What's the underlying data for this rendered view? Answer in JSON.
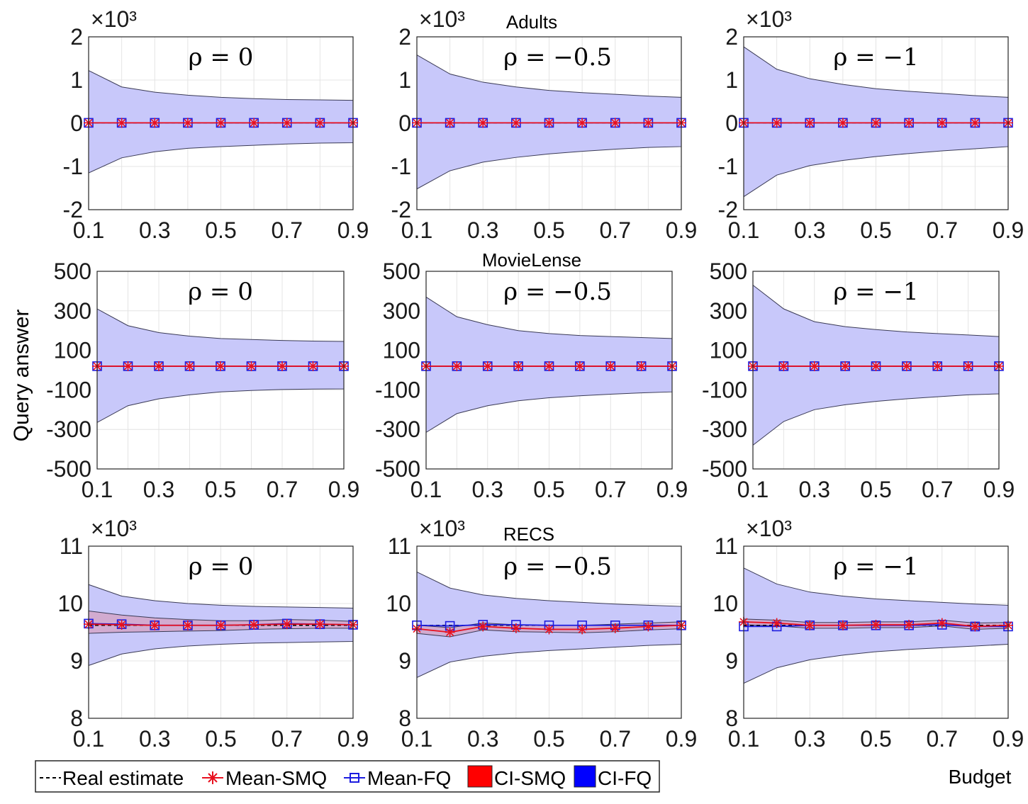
{
  "figure": {
    "y_label": "Query answer",
    "x_label": "Budget",
    "row_titles": [
      "Adults",
      "MovieLense",
      "RECS"
    ],
    "colors": {
      "fq_band": "#c8c8fa",
      "smq_band": "#d4a6c8",
      "band_edge": "#3a3a55",
      "real": "#000000",
      "smq": "#e8101e",
      "fq": "#1c1ce0",
      "grid": "#e4e4e4",
      "axis": "#262626",
      "ci_smq_patch": "#ff0000",
      "ci_fq_patch": "#0000ff"
    }
  },
  "legend": {
    "items": [
      {
        "label": "Real estimate",
        "icon": "dashed-line-icon"
      },
      {
        "label": "Mean-SMQ",
        "icon": "asterisk-marker-icon"
      },
      {
        "label": "Mean-FQ",
        "icon": "square-marker-icon"
      },
      {
        "label": "CI-SMQ",
        "icon": "red-patch-icon"
      },
      {
        "label": "CI-FQ",
        "icon": "blue-patch-icon"
      }
    ]
  },
  "chart_data": [
    {
      "type": "line",
      "row": 0,
      "col": 0,
      "dataset": "Adults",
      "title": "ρ = 0",
      "multiplier": "×10³",
      "x": [
        0.1,
        0.2,
        0.3,
        0.4,
        0.5,
        0.6,
        0.7,
        0.8,
        0.9
      ],
      "xticks": [
        "0.1",
        "0.3",
        "0.5",
        "0.7",
        "0.9"
      ],
      "ylim": [
        -2,
        2
      ],
      "yticks": [
        2,
        1,
        0,
        -1,
        -2
      ],
      "ytick_labels": [
        "2",
        "1",
        "0",
        "-1",
        "-2"
      ],
      "real": [
        0.01,
        0.01,
        0.01,
        0.01,
        0.01,
        0.01,
        0.01,
        0.01,
        0.01
      ],
      "fq_mean": [
        0.01,
        0.01,
        0.01,
        0.01,
        0.01,
        0.01,
        0.01,
        0.01,
        0.01
      ],
      "smq_mean": [
        0.01,
        0.01,
        0.01,
        0.01,
        0.01,
        0.01,
        0.01,
        0.01,
        0.01
      ],
      "fq_upper": [
        1.22,
        0.84,
        0.72,
        0.65,
        0.6,
        0.57,
        0.55,
        0.54,
        0.53
      ],
      "fq_lower": [
        -1.15,
        -0.8,
        -0.66,
        -0.58,
        -0.54,
        -0.51,
        -0.48,
        -0.46,
        -0.45
      ]
    },
    {
      "type": "line",
      "row": 0,
      "col": 1,
      "dataset": "Adults",
      "title": "ρ = −0.5",
      "multiplier": "×10³",
      "x": [
        0.1,
        0.2,
        0.3,
        0.4,
        0.5,
        0.6,
        0.7,
        0.8,
        0.9
      ],
      "xticks": [
        "0.1",
        "0.3",
        "0.5",
        "0.7",
        "0.9"
      ],
      "ylim": [
        -2,
        2
      ],
      "yticks": [
        2,
        1,
        0,
        -1,
        -2
      ],
      "ytick_labels": [
        "2",
        "1",
        "0",
        "-1",
        "-2"
      ],
      "real": [
        0.01,
        0.01,
        0.01,
        0.01,
        0.01,
        0.01,
        0.01,
        0.01,
        0.01
      ],
      "fq_mean": [
        0.01,
        0.01,
        0.01,
        0.01,
        0.01,
        0.01,
        0.01,
        0.01,
        0.01
      ],
      "smq_mean": [
        0.01,
        0.01,
        0.01,
        0.01,
        0.01,
        0.01,
        0.01,
        0.01,
        0.01
      ],
      "fq_upper": [
        1.58,
        1.14,
        0.95,
        0.84,
        0.76,
        0.71,
        0.67,
        0.63,
        0.6
      ],
      "fq_lower": [
        -1.52,
        -1.1,
        -0.9,
        -0.79,
        -0.71,
        -0.65,
        -0.6,
        -0.56,
        -0.54
      ]
    },
    {
      "type": "line",
      "row": 0,
      "col": 2,
      "dataset": "Adults",
      "title": "ρ = −1",
      "multiplier": "×10³",
      "x": [
        0.1,
        0.2,
        0.3,
        0.4,
        0.5,
        0.6,
        0.7,
        0.8,
        0.9
      ],
      "xticks": [
        "0.1",
        "0.3",
        "0.5",
        "0.7",
        "0.9"
      ],
      "ylim": [
        -2,
        2
      ],
      "yticks": [
        2,
        1,
        0,
        -1,
        -2
      ],
      "ytick_labels": [
        "2",
        "1",
        "0",
        "-1",
        "-2"
      ],
      "real": [
        0.01,
        0.01,
        0.01,
        0.01,
        0.01,
        0.01,
        0.01,
        0.01,
        0.01
      ],
      "fq_mean": [
        0.01,
        0.01,
        0.01,
        0.01,
        0.01,
        0.01,
        0.01,
        0.01,
        0.01
      ],
      "smq_mean": [
        0.01,
        0.01,
        0.01,
        0.01,
        0.01,
        0.01,
        0.01,
        0.01,
        0.01
      ],
      "fq_upper": [
        1.77,
        1.25,
        1.03,
        0.9,
        0.8,
        0.74,
        0.69,
        0.64,
        0.6
      ],
      "fq_lower": [
        -1.7,
        -1.2,
        -0.98,
        -0.86,
        -0.77,
        -0.7,
        -0.64,
        -0.59,
        -0.54
      ]
    },
    {
      "type": "line",
      "row": 1,
      "col": 0,
      "dataset": "MovieLense",
      "title": "ρ = 0",
      "multiplier": "",
      "x": [
        0.1,
        0.2,
        0.3,
        0.4,
        0.5,
        0.6,
        0.7,
        0.8,
        0.9
      ],
      "xticks": [
        "0.1",
        "0.3",
        "0.5",
        "0.7",
        "0.9"
      ],
      "ylim": [
        -500,
        500
      ],
      "yticks": [
        500,
        300,
        100,
        -100,
        -300,
        -500
      ],
      "ytick_labels": [
        "500",
        "300",
        "100",
        "-100",
        "-300",
        "-500"
      ],
      "real": [
        20,
        20,
        20,
        20,
        20,
        20,
        20,
        20,
        20
      ],
      "fq_mean": [
        20,
        20,
        20,
        20,
        20,
        20,
        20,
        20,
        20
      ],
      "smq_mean": [
        20,
        20,
        20,
        20,
        20,
        20,
        20,
        20,
        20
      ],
      "fq_upper": [
        310,
        225,
        190,
        172,
        160,
        155,
        150,
        147,
        145
      ],
      "fq_lower": [
        -265,
        -180,
        -145,
        -125,
        -110,
        -103,
        -98,
        -96,
        -95
      ]
    },
    {
      "type": "line",
      "row": 1,
      "col": 1,
      "dataset": "MovieLense",
      "title": "ρ = −0.5",
      "multiplier": "",
      "x": [
        0.1,
        0.2,
        0.3,
        0.4,
        0.5,
        0.6,
        0.7,
        0.8,
        0.9
      ],
      "xticks": [
        "0.1",
        "0.3",
        "0.5",
        "0.7",
        "0.9"
      ],
      "ylim": [
        -500,
        500
      ],
      "yticks": [
        500,
        300,
        100,
        -100,
        -300,
        -500
      ],
      "ytick_labels": [
        "500",
        "300",
        "100",
        "-100",
        "-300",
        "-500"
      ],
      "real": [
        20,
        20,
        20,
        20,
        20,
        20,
        20,
        20,
        20
      ],
      "fq_mean": [
        20,
        20,
        20,
        20,
        20,
        20,
        20,
        20,
        20
      ],
      "smq_mean": [
        20,
        20,
        20,
        20,
        20,
        20,
        20,
        20,
        20
      ],
      "fq_upper": [
        370,
        270,
        230,
        200,
        185,
        175,
        170,
        165,
        160
      ],
      "fq_lower": [
        -315,
        -220,
        -180,
        -155,
        -140,
        -130,
        -122,
        -115,
        -110
      ]
    },
    {
      "type": "line",
      "row": 1,
      "col": 2,
      "dataset": "MovieLense",
      "title": "ρ = −1",
      "multiplier": "",
      "x": [
        0.1,
        0.2,
        0.3,
        0.4,
        0.5,
        0.6,
        0.7,
        0.8,
        0.9
      ],
      "xticks": [
        "0.1",
        "0.3",
        "0.5",
        "0.7",
        "0.9"
      ],
      "ylim": [
        -500,
        500
      ],
      "yticks": [
        500,
        300,
        100,
        -100,
        -300,
        -500
      ],
      "ytick_labels": [
        "500",
        "300",
        "100",
        "-100",
        "-300",
        "-500"
      ],
      "real": [
        20,
        20,
        20,
        20,
        20,
        20,
        20,
        20,
        20
      ],
      "fq_mean": [
        20,
        20,
        20,
        20,
        20,
        20,
        20,
        20,
        20
      ],
      "smq_mean": [
        20,
        20,
        20,
        20,
        20,
        20,
        20,
        20,
        20
      ],
      "fq_upper": [
        430,
        310,
        245,
        220,
        205,
        193,
        185,
        178,
        170
      ],
      "fq_lower": [
        -380,
        -260,
        -200,
        -175,
        -158,
        -145,
        -135,
        -125,
        -120
      ]
    },
    {
      "type": "line",
      "row": 2,
      "col": 0,
      "dataset": "RECS",
      "title": "ρ = 0",
      "multiplier": "×10³",
      "x": [
        0.1,
        0.2,
        0.3,
        0.4,
        0.5,
        0.6,
        0.7,
        0.8,
        0.9
      ],
      "xticks": [
        "0.1",
        "0.3",
        "0.5",
        "0.7",
        "0.9"
      ],
      "ylim": [
        8,
        11
      ],
      "yticks": [
        11,
        10,
        9,
        8
      ],
      "ytick_labels": [
        "11",
        "10",
        "9",
        "8"
      ],
      "real": [
        9.62,
        9.62,
        9.62,
        9.62,
        9.62,
        9.62,
        9.62,
        9.62,
        9.62
      ],
      "fq_mean": [
        9.65,
        9.64,
        9.62,
        9.62,
        9.62,
        9.63,
        9.65,
        9.64,
        9.63
      ],
      "smq_mean": [
        9.64,
        9.63,
        9.62,
        9.62,
        9.62,
        9.63,
        9.64,
        9.64,
        9.63
      ],
      "fq_upper": [
        10.33,
        10.13,
        10.05,
        10,
        9.97,
        9.95,
        9.94,
        9.93,
        9.92
      ],
      "fq_lower": [
        8.92,
        9.12,
        9.21,
        9.26,
        9.29,
        9.31,
        9.32,
        9.33,
        9.34
      ],
      "smq_upper": [
        9.87,
        9.8,
        9.75,
        9.72,
        9.7,
        9.7,
        9.72,
        9.71,
        9.69
      ],
      "smq_lower": [
        9.48,
        9.5,
        9.51,
        9.52,
        9.53,
        9.55,
        9.56,
        9.57,
        9.57
      ]
    },
    {
      "type": "line",
      "row": 2,
      "col": 1,
      "dataset": "RECS",
      "title": "ρ = −0.5",
      "multiplier": "×10³",
      "x": [
        0.1,
        0.2,
        0.3,
        0.4,
        0.5,
        0.6,
        0.7,
        0.8,
        0.9
      ],
      "xticks": [
        "0.1",
        "0.3",
        "0.5",
        "0.7",
        "0.9"
      ],
      "ylim": [
        8,
        11
      ],
      "yticks": [
        11,
        10,
        9,
        8
      ],
      "ytick_labels": [
        "11",
        "10",
        "9",
        "8"
      ],
      "real": [
        9.62,
        9.62,
        9.62,
        9.62,
        9.62,
        9.62,
        9.62,
        9.62,
        9.62
      ],
      "fq_mean": [
        9.62,
        9.61,
        9.63,
        9.63,
        9.62,
        9.62,
        9.62,
        9.62,
        9.62
      ],
      "smq_mean": [
        9.56,
        9.5,
        9.6,
        9.57,
        9.55,
        9.55,
        9.57,
        9.6,
        9.62
      ],
      "fq_upper": [
        10.55,
        10.27,
        10.15,
        10.09,
        10.05,
        10.02,
        9.99,
        9.97,
        9.95
      ],
      "fq_lower": [
        8.71,
        8.98,
        9.08,
        9.14,
        9.18,
        9.21,
        9.24,
        9.27,
        9.29
      ],
      "smq_upper": [
        9.62,
        9.58,
        9.66,
        9.63,
        9.62,
        9.62,
        9.64,
        9.66,
        9.68
      ],
      "smq_lower": [
        9.48,
        9.42,
        9.54,
        9.51,
        9.5,
        9.49,
        9.51,
        9.54,
        9.56
      ]
    },
    {
      "type": "line",
      "row": 2,
      "col": 2,
      "dataset": "RECS",
      "title": "ρ = −1",
      "multiplier": "×10³",
      "x": [
        0.1,
        0.2,
        0.3,
        0.4,
        0.5,
        0.6,
        0.7,
        0.8,
        0.9
      ],
      "xticks": [
        "0.1",
        "0.3",
        "0.5",
        "0.7",
        "0.9"
      ],
      "ylim": [
        8,
        11
      ],
      "yticks": [
        11,
        10,
        9,
        8
      ],
      "ytick_labels": [
        "11",
        "10",
        "9",
        "8"
      ],
      "real": [
        9.62,
        9.62,
        9.62,
        9.62,
        9.62,
        9.62,
        9.62,
        9.62,
        9.62
      ],
      "fq_mean": [
        9.6,
        9.6,
        9.62,
        9.62,
        9.62,
        9.62,
        9.63,
        9.6,
        9.6
      ],
      "smq_mean": [
        9.68,
        9.66,
        9.62,
        9.62,
        9.63,
        9.63,
        9.66,
        9.6,
        9.62
      ],
      "fq_upper": [
        10.62,
        10.34,
        10.2,
        10.13,
        10.08,
        10.05,
        10.02,
        9.99,
        9.97
      ],
      "fq_lower": [
        8.61,
        8.88,
        9.02,
        9.1,
        9.16,
        9.2,
        9.23,
        9.26,
        9.29
      ],
      "smq_upper": [
        9.73,
        9.71,
        9.67,
        9.67,
        9.68,
        9.68,
        9.71,
        9.66,
        9.67
      ],
      "smq_lower": [
        9.63,
        9.61,
        9.57,
        9.57,
        9.58,
        9.58,
        9.61,
        9.55,
        9.57
      ]
    }
  ]
}
